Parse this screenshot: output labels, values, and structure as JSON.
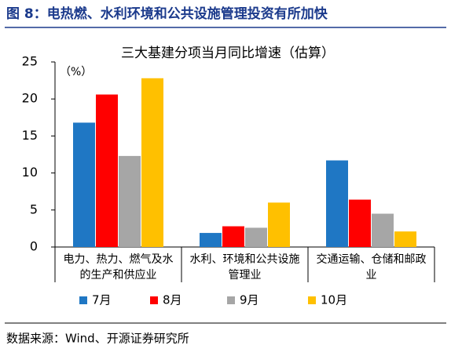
{
  "header": {
    "title": "图 8：电热燃、水利环境和公共设施管理投资有所加快"
  },
  "chart_data": {
    "type": "bar",
    "title": "三大基建分项当月同比增速（估算）",
    "y_unit": "（%）",
    "categories": [
      "电力、热力、燃气及水的生产和供应业",
      "水利、环境和公共设施管理业",
      "交通运输、仓储和邮政业"
    ],
    "series": [
      {
        "name": "7月",
        "color": "#1f77c4",
        "values": [
          16.8,
          1.9,
          11.7
        ]
      },
      {
        "name": "8月",
        "color": "#ff0000",
        "values": [
          20.6,
          2.8,
          6.4
        ]
      },
      {
        "name": "9月",
        "color": "#a6a6a6",
        "values": [
          12.3,
          2.6,
          4.5
        ]
      },
      {
        "name": "10月",
        "color": "#ffc000",
        "values": [
          22.8,
          6.0,
          2.1
        ]
      }
    ],
    "ylim": [
      0,
      25
    ],
    "yticks": [
      0,
      5,
      10,
      15,
      20,
      25
    ],
    "legend": "bottom"
  },
  "source": "数据来源：Wind、开源证券研究所"
}
